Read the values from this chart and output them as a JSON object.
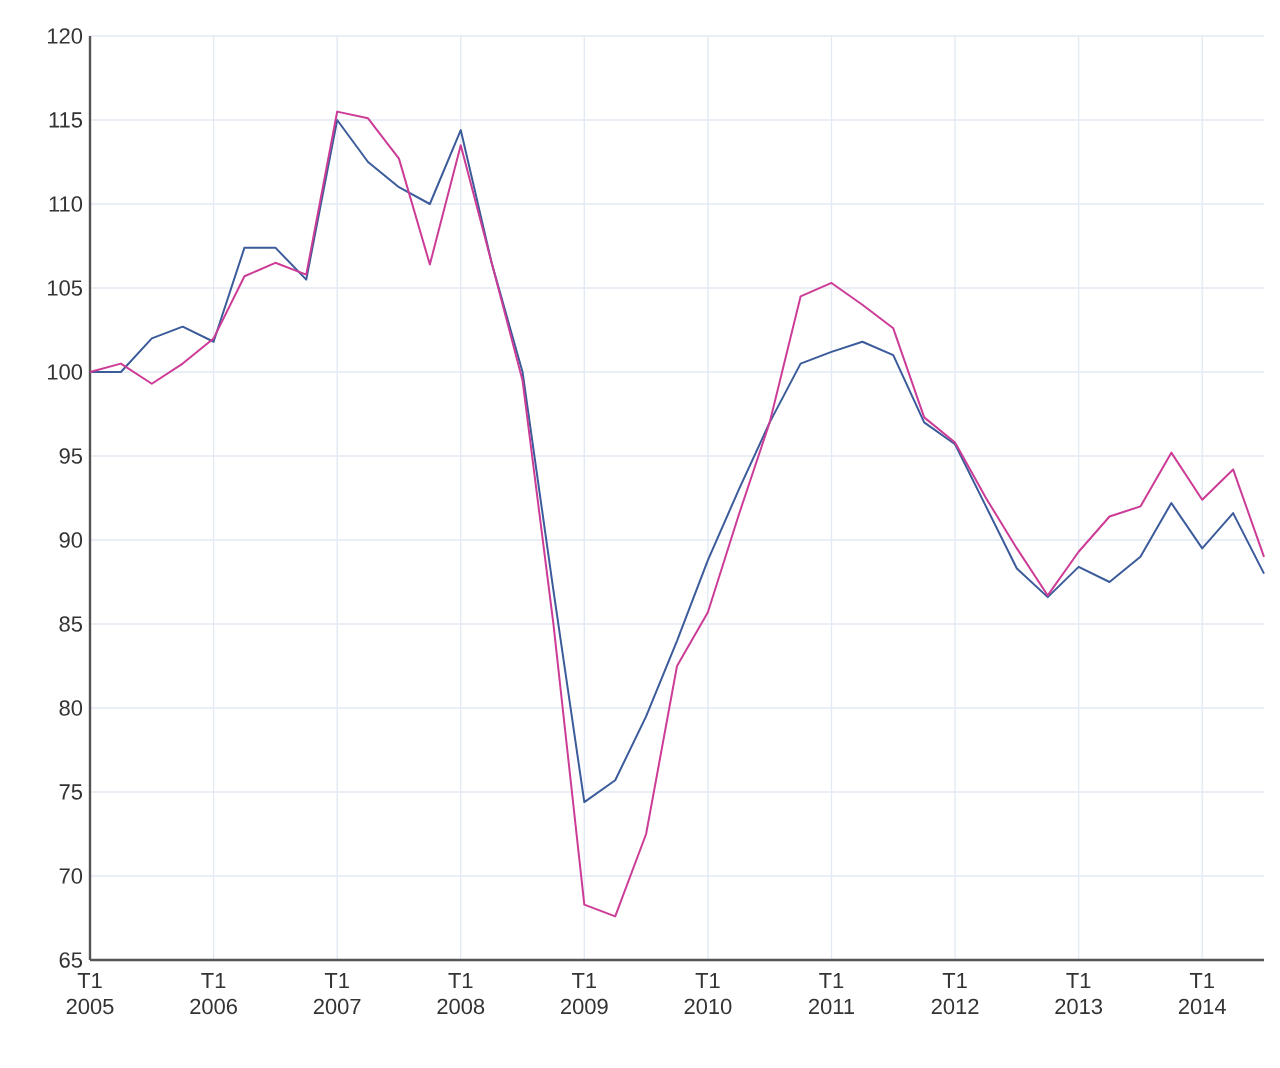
{
  "chart_data": {
    "type": "line",
    "categories": [
      "T1 2005",
      null,
      null,
      null,
      "T1 2006",
      null,
      null,
      null,
      "T1 2007",
      null,
      null,
      null,
      "T1 2008",
      null,
      null,
      null,
      "T1 2009",
      null,
      null,
      null,
      "T1 2010",
      null,
      null,
      null,
      "T1 2011",
      null,
      null,
      null,
      "T1 2012",
      null,
      null,
      null,
      "T1 2013",
      null,
      null,
      null,
      "T1 2014",
      null,
      null
    ],
    "series": [
      {
        "color": "#3b5b9a",
        "values": [
          100,
          100,
          102,
          102.7,
          101.8,
          107.4,
          107.4,
          105.5,
          115,
          112.5,
          111,
          110,
          114.4,
          106.5,
          100,
          87,
          74.4,
          75.7,
          79.5,
          84,
          88.8,
          93,
          97,
          100.5,
          101.2,
          101.8,
          101,
          97,
          95.7,
          92,
          88.3,
          86.6,
          88.4,
          87.5,
          89,
          92.2,
          89.5,
          91.6,
          88
        ]
      },
      {
        "color": "#cc3c96",
        "values": [
          100,
          100.5,
          99.3,
          100.5,
          102,
          105.7,
          106.5,
          105.8,
          115.5,
          115.1,
          112.7,
          106.4,
          113.5,
          106.5,
          99.5,
          85,
          68.3,
          67.6,
          72.5,
          82.5,
          85.7,
          91.5,
          97,
          104.5,
          105.3,
          104,
          102.6,
          97.3,
          95.8,
          92.5,
          89.5,
          86.7,
          89.3,
          91.4,
          92,
          95.2,
          92.4,
          94.2,
          89
        ]
      }
    ],
    "ylim": [
      65,
      120
    ],
    "yticks": [
      65,
      70,
      75,
      80,
      85,
      90,
      95,
      100,
      105,
      110,
      115,
      120
    ],
    "grid": true,
    "marker": "none",
    "line_style": "solid"
  }
}
